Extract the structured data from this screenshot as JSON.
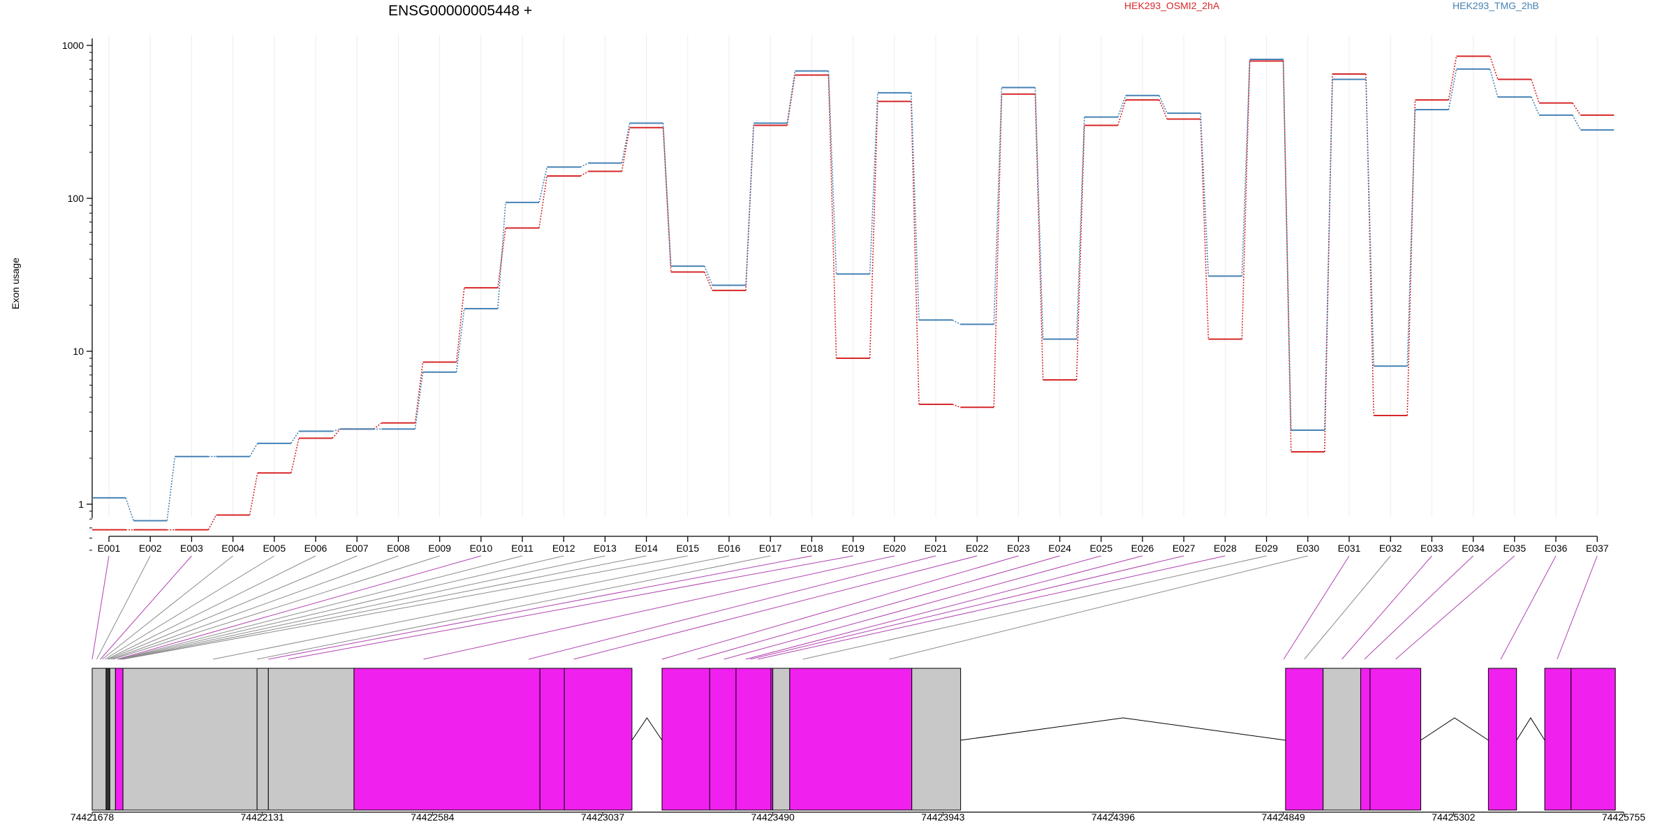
{
  "chart_data": {
    "type": "line",
    "title": "ENSG00000005448 +",
    "ylabel": "Exon usage",
    "y_scale": "log",
    "ylim": [
      0.5,
      1000
    ],
    "y_ticks": [
      "1",
      "10",
      "100",
      "1000"
    ],
    "categories": [
      "E001",
      "E002",
      "E003",
      "E004",
      "E005",
      "E006",
      "E007",
      "E008",
      "E009",
      "E010",
      "E011",
      "E012",
      "E013",
      "E014",
      "E015",
      "E016",
      "E017",
      "E018",
      "E019",
      "E020",
      "E021",
      "E022",
      "E023",
      "E024",
      "E025",
      "E026",
      "E027",
      "E028",
      "E029",
      "E030",
      "E031",
      "E032",
      "E033",
      "E034",
      "E035",
      "E036",
      "E037"
    ],
    "series": [
      {
        "name": "HEK293_OSMI2_2hA",
        "color": "#d62728",
        "values": [
          0.68,
          0.68,
          0.68,
          0.85,
          1.6,
          2.7,
          3.1,
          3.4,
          8.5,
          26,
          64,
          140,
          150,
          290,
          33,
          25,
          300,
          640,
          9,
          430,
          4.5,
          4.3,
          480,
          6.5,
          300,
          440,
          330,
          12,
          790,
          2.2,
          650,
          3.8,
          440,
          850,
          600,
          420,
          350
        ]
      },
      {
        "name": "HEK293_TMG_2hB",
        "color": "#4682b4",
        "values": [
          1.1,
          0.78,
          2.05,
          2.05,
          2.5,
          3.0,
          3.1,
          3.1,
          7.3,
          19,
          94,
          160,
          170,
          310,
          36,
          27,
          310,
          680,
          32,
          490,
          16,
          15,
          530,
          12,
          340,
          470,
          360,
          31,
          810,
          3.05,
          600,
          8,
          380,
          700,
          460,
          350,
          280
        ]
      }
    ],
    "exon_links": [
      1,
      0,
      1,
      0,
      0,
      0,
      0,
      0,
      0,
      1,
      0,
      0,
      0,
      0,
      0,
      0,
      0,
      1,
      1,
      1,
      1,
      1,
      1,
      1,
      1,
      1,
      1,
      1,
      0,
      0,
      1,
      0,
      1,
      1,
      1,
      1,
      1
    ],
    "gene_axis": {
      "ticks": [
        "74421678",
        "74422131",
        "74422584",
        "74423037",
        "74423490",
        "74423943",
        "74424396",
        "74424849",
        "74425302",
        "74425755"
      ],
      "start": 74421678,
      "end": 74425755
    },
    "gene_model": {
      "blocks": [
        {
          "start": 74421678,
          "end": 74421715,
          "type": "utr"
        },
        {
          "start": 74421715,
          "end": 74421725,
          "type": "dark"
        },
        {
          "start": 74421725,
          "end": 74421740,
          "type": "utr"
        },
        {
          "start": 74421740,
          "end": 74421760,
          "type": "cds"
        },
        {
          "start": 74421760,
          "end": 74422117,
          "type": "utr"
        },
        {
          "start": 74422117,
          "end": 74422147,
          "type": "utr"
        },
        {
          "start": 74422147,
          "end": 74422375,
          "type": "utr"
        },
        {
          "start": 74422375,
          "end": 74422870,
          "type": "cds"
        },
        {
          "start": 74422870,
          "end": 74422935,
          "type": "cds"
        },
        {
          "start": 74422935,
          "end": 74423115,
          "type": "cds"
        },
        {
          "start": 74423195,
          "end": 74423322,
          "type": "cds"
        },
        {
          "start": 74423322,
          "end": 74423392,
          "type": "cds"
        },
        {
          "start": 74423392,
          "end": 74423485,
          "type": "cds"
        },
        {
          "start": 74423485,
          "end": 74423490,
          "type": "cds"
        },
        {
          "start": 74423490,
          "end": 74423535,
          "type": "utr"
        },
        {
          "start": 74423535,
          "end": 74423860,
          "type": "cds"
        },
        {
          "start": 74423860,
          "end": 74423990,
          "type": "utr"
        },
        {
          "start": 74424855,
          "end": 74424955,
          "type": "cds"
        },
        {
          "start": 74424955,
          "end": 74425055,
          "type": "utr"
        },
        {
          "start": 74425055,
          "end": 74425080,
          "type": "cds"
        },
        {
          "start": 74425080,
          "end": 74425215,
          "type": "cds"
        },
        {
          "start": 74425395,
          "end": 74425470,
          "type": "cds"
        },
        {
          "start": 74425545,
          "end": 74425615,
          "type": "cds"
        },
        {
          "start": 74425615,
          "end": 74425733,
          "type": "cds"
        }
      ],
      "introns": [
        [
          74423115,
          74423195
        ],
        [
          74423990,
          74424855
        ],
        [
          74425215,
          74425395
        ],
        [
          74425470,
          74425545
        ]
      ],
      "feature_starts": [
        74421678,
        74421690,
        74421700,
        74421705,
        74421712,
        74421718,
        74421722,
        74421728,
        74421733,
        74421740,
        74421745,
        74421750,
        74421752,
        74421755,
        74421758,
        74421760,
        74422000,
        74422117,
        74422147,
        74422200,
        74422560,
        74422840,
        74422960,
        74423195,
        74423290,
        74423360,
        74423418,
        74423430,
        74423438,
        74423450,
        74423570,
        74423800,
        74424850,
        74424905,
        74425005,
        74425065,
        74425148,
        74425428,
        74425578
      ]
    }
  }
}
